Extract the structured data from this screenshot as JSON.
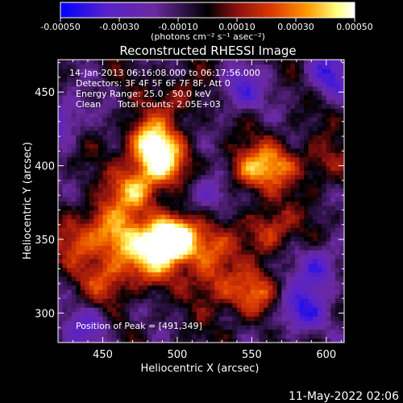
{
  "colorbar": {
    "ticks": [
      "-0.00050",
      "-0.00030",
      "-0.00010",
      "0.00010",
      "0.00030",
      "0.00050"
    ],
    "unit_label": "(photons cm⁻² s⁻¹ asec⁻²)",
    "colormap": [
      "#0000ff",
      "#5a22c8",
      "#6b2aa0",
      "#000000",
      "#8b1010",
      "#dc3a00",
      "#ff9a00",
      "#ffff80",
      "#ffffff"
    ]
  },
  "chart_data": {
    "type": "heatmap",
    "title": "Reconstructed RHESSI Image",
    "annotations": [
      "14-Jan-2013 06:16:08.000 to 06:17:56.000",
      "Detectors: 3F 4F 5F 6F 7F 8F, Att 0",
      "Energy Range: 25.0 - 50.0 keV",
      "Clean",
      "Total counts: 2.05E+03"
    ],
    "peak_label": "Position of Peak = [491,349]",
    "peak_position": [
      491,
      349
    ],
    "xlabel": "Heliocentric X (arcsec)",
    "ylabel": "Heliocentric Y (arcsec)",
    "xlim": [
      420,
      612
    ],
    "ylim": [
      280,
      472
    ],
    "xticks": [
      450,
      500,
      550,
      600
    ],
    "yticks": [
      300,
      350,
      400,
      450
    ],
    "x_tick_labels": [
      "450",
      "500",
      "550",
      "600"
    ],
    "y_tick_labels": [
      "300",
      "350",
      "400",
      "450"
    ],
    "value_range": [
      -0.0005,
      0.0005
    ],
    "sources": [
      {
        "x": 480,
        "y": 415,
        "value": 0.00048
      },
      {
        "x": 488,
        "y": 400,
        "value": 0.00045
      },
      {
        "x": 470,
        "y": 382,
        "value": 0.0004
      },
      {
        "x": 491,
        "y": 349,
        "value": 0.0005
      },
      {
        "x": 500,
        "y": 350,
        "value": 0.00042
      },
      {
        "x": 462,
        "y": 345,
        "value": 0.00038
      },
      {
        "x": 448,
        "y": 360,
        "value": 0.0003
      },
      {
        "x": 450,
        "y": 320,
        "value": 0.00025
      },
      {
        "x": 478,
        "y": 330,
        "value": 0.0003
      },
      {
        "x": 520,
        "y": 340,
        "value": 0.00028
      },
      {
        "x": 560,
        "y": 355,
        "value": 0.0003
      },
      {
        "x": 545,
        "y": 395,
        "value": 0.00032
      },
      {
        "x": 565,
        "y": 400,
        "value": 0.0003
      },
      {
        "x": 548,
        "y": 310,
        "value": 0.0003
      },
      {
        "x": 525,
        "y": 318,
        "value": 0.00024
      },
      {
        "x": 430,
        "y": 345,
        "value": 0.0002
      },
      {
        "x": 500,
        "y": 445,
        "value": 0.0002
      },
      {
        "x": 595,
        "y": 400,
        "value": 0.00018
      },
      {
        "x": 580,
        "y": 300,
        "value": -0.00035
      },
      {
        "x": 420,
        "y": 430,
        "value": -0.0003
      },
      {
        "x": 600,
        "y": 460,
        "value": -0.0003
      },
      {
        "x": 540,
        "y": 450,
        "value": -0.00028
      },
      {
        "x": 595,
        "y": 330,
        "value": -0.0003
      },
      {
        "x": 520,
        "y": 380,
        "value": -0.00025
      },
      {
        "x": 440,
        "y": 290,
        "value": -0.00022
      }
    ]
  },
  "footer": {
    "timestamp": "11-May-2022 02:06"
  }
}
